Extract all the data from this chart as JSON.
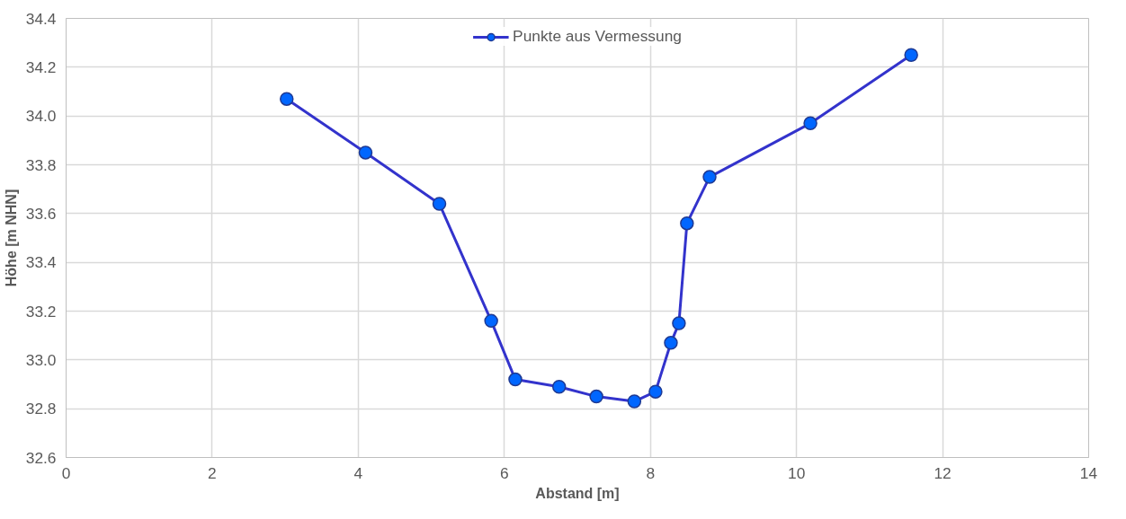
{
  "chart_data": {
    "type": "line",
    "xlabel": "Abstand [m]",
    "ylabel": "Höhe [m NHN]",
    "x": [
      3.02,
      4.1,
      5.11,
      5.82,
      6.15,
      6.75,
      7.26,
      7.78,
      8.07,
      8.28,
      8.39,
      8.5,
      8.81,
      10.19,
      11.57
    ],
    "series": [
      {
        "name": "Punkte aus Vermessung",
        "color": "#3333cc",
        "values": [
          34.07,
          33.85,
          33.64,
          33.16,
          32.92,
          32.89,
          32.85,
          32.83,
          32.87,
          33.07,
          33.15,
          33.56,
          33.75,
          33.97,
          34.25
        ]
      }
    ],
    "xlim": [
      0,
      14
    ],
    "xticks": [
      0,
      2,
      4,
      6,
      8,
      10,
      12,
      14
    ],
    "ylim": [
      32.6,
      34.4
    ],
    "yticks": [
      {
        "value": 32.6,
        "label": "32.6"
      },
      {
        "value": 32.8,
        "label": "32.8"
      },
      {
        "value": 33.0,
        "label": "33.0"
      },
      {
        "value": 33.2,
        "label": "33.2"
      },
      {
        "value": 33.4,
        "label": "33.4"
      },
      {
        "value": 33.6,
        "label": "33.6"
      },
      {
        "value": 33.8,
        "label": "33.8"
      },
      {
        "value": 34.0,
        "label": "34.0"
      },
      {
        "value": 34.2,
        "label": "34.2"
      },
      {
        "value": 34.4,
        "label": "34.4"
      }
    ],
    "grid": true,
    "legend": "top",
    "marker": "circle",
    "line_style": "solid"
  }
}
